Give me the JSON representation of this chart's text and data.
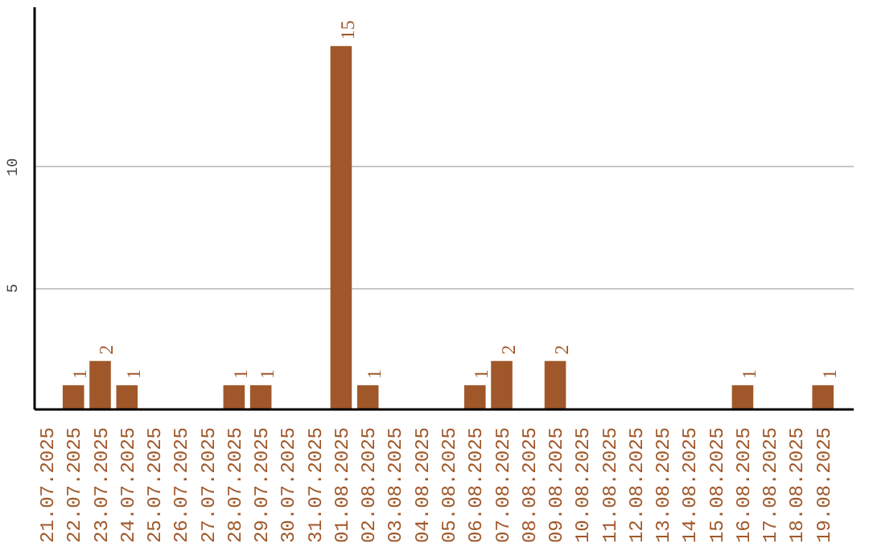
{
  "chart_data": {
    "type": "bar",
    "color": "#a0582a",
    "categories": [
      "21.07.2025",
      "22.07.2025",
      "23.07.2025",
      "24.07.2025",
      "25.07.2025",
      "26.07.2025",
      "27.07.2025",
      "28.07.2025",
      "29.07.2025",
      "30.07.2025",
      "31.07.2025",
      "01.08.2025",
      "02.08.2025",
      "03.08.2025",
      "04.08.2025",
      "05.08.2025",
      "06.08.2025",
      "07.08.2025",
      "08.08.2025",
      "09.08.2025",
      "10.08.2025",
      "11.08.2025",
      "12.08.2025",
      "13.08.2025",
      "14.08.2025",
      "15.08.2025",
      "16.08.2025",
      "17.08.2025",
      "18.08.2025",
      "19.08.2025"
    ],
    "values": [
      0,
      1,
      2,
      1,
      0,
      0,
      0,
      1,
      1,
      0,
      0,
      15,
      1,
      0,
      0,
      0,
      1,
      2,
      0,
      2,
      0,
      0,
      0,
      0,
      0,
      0,
      1,
      0,
      0,
      1
    ],
    "value_labels": [
      null,
      "1",
      "2",
      "1",
      null,
      null,
      null,
      "1",
      "1",
      null,
      null,
      "15",
      "1",
      null,
      null,
      null,
      "1",
      "2",
      null,
      "2",
      null,
      null,
      null,
      null,
      null,
      null,
      "1",
      null,
      null,
      "1"
    ],
    "ylim": [
      0,
      16.6
    ],
    "yticks": [
      5,
      10
    ],
    "grid": "y"
  }
}
